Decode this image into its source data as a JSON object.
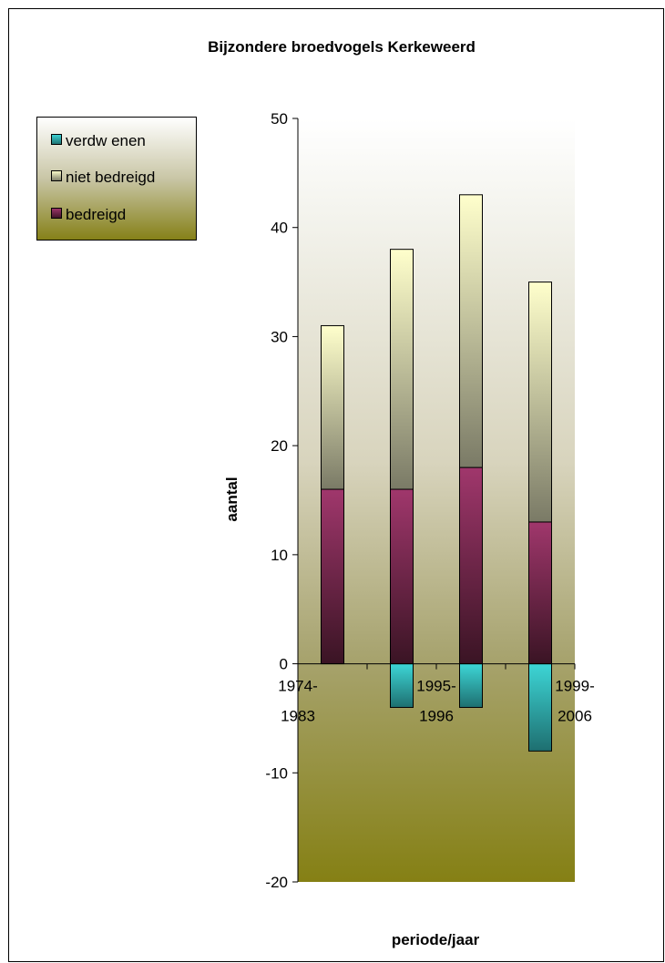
{
  "chart_data": {
    "type": "bar",
    "stacked": true,
    "title": "Bijzondere broedvogels Kerkeweerd",
    "xlabel": "periode/jaar",
    "ylabel": "aantal",
    "ylim": [
      -20,
      50
    ],
    "yticks": [
      -20,
      -10,
      0,
      10,
      20,
      30,
      40,
      50
    ],
    "category_positions": 4,
    "tick_labels": [
      {
        "line1": "1974-",
        "line2": "1983",
        "pos": 0
      },
      {
        "line1": "1995-",
        "line2": "1996",
        "pos": 2
      },
      {
        "line1": "1999-",
        "line2": "2006",
        "pos": 4
      }
    ],
    "legend": {
      "position": "top-left",
      "entries": [
        "verdw enen",
        "niet bedreigd",
        "bedreigd"
      ]
    },
    "series": [
      {
        "name": "bedreigd",
        "values": [
          16,
          16,
          18,
          13
        ],
        "color": "#993366"
      },
      {
        "name": "niet bedreigd",
        "values": [
          15,
          22,
          25,
          22
        ],
        "color": "#ffffcc"
      },
      {
        "name": "verdw enen",
        "values": [
          0,
          -4,
          -4,
          -8
        ],
        "color": "#33cccc"
      }
    ]
  }
}
